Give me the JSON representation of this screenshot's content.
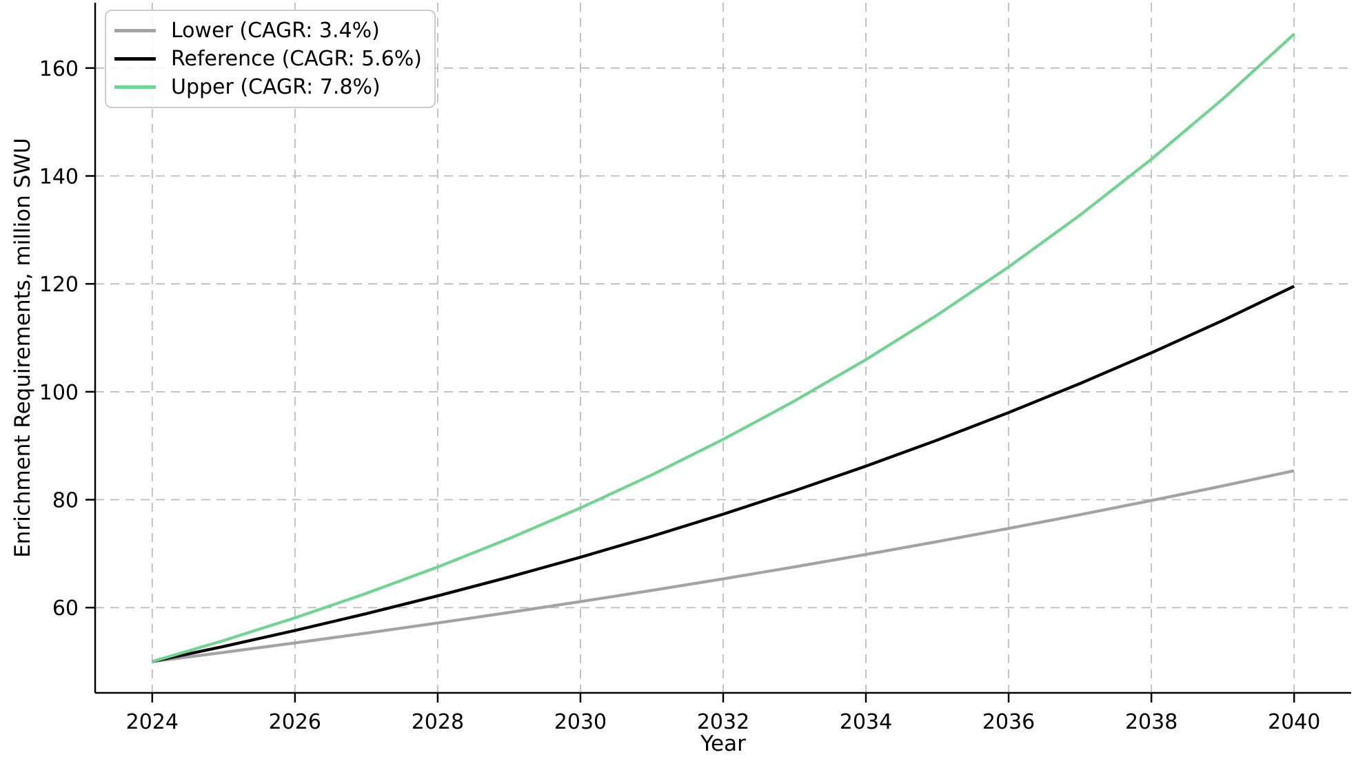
{
  "chart_data": {
    "type": "line",
    "title": "",
    "xlabel": "Year",
    "ylabel": "Enrichment Requirements, million SWU",
    "x": [
      2024,
      2025,
      2026,
      2027,
      2028,
      2029,
      2030,
      2031,
      2032,
      2033,
      2034,
      2035,
      2036,
      2037,
      2038,
      2039,
      2040
    ],
    "series": [
      {
        "name": "Lower (CAGR: 3.4%)",
        "key": "lower",
        "color": "#a3a3a3",
        "values": [
          50.0,
          51.7,
          53.46,
          55.28,
          57.15,
          59.1,
          61.11,
          63.18,
          65.33,
          67.55,
          69.85,
          72.23,
          74.68,
          77.22,
          79.85,
          82.56,
          85.37
        ]
      },
      {
        "name": "Reference (CAGR: 5.6%)",
        "key": "reference",
        "color": "#000000",
        "values": [
          50.0,
          52.8,
          55.76,
          58.88,
          62.18,
          65.66,
          69.34,
          73.22,
          77.32,
          81.65,
          86.22,
          91.05,
          96.15,
          101.53,
          107.22,
          113.22,
          119.56
        ]
      },
      {
        "name": "Upper (CAGR: 7.8%)",
        "key": "upper",
        "color": "#74d393",
        "values": [
          50.0,
          53.9,
          58.1,
          62.64,
          67.52,
          72.79,
          78.47,
          84.59,
          91.18,
          98.3,
          105.96,
          114.23,
          123.14,
          132.74,
          143.1,
          154.26,
          166.29
        ]
      }
    ],
    "xlim": [
      2023.2,
      2040.8
    ],
    "ylim": [
      44.2,
      172.1
    ],
    "xticks": [
      2024,
      2026,
      2028,
      2030,
      2032,
      2034,
      2036,
      2038,
      2040
    ],
    "yticks": [
      60,
      80,
      100,
      120,
      140,
      160
    ],
    "grid": "dashed-both-axes",
    "legend_position": "upper-left"
  },
  "style": {
    "grid_color": "#bdbdbd",
    "axis_color": "#000000",
    "tick_label_color": "#000000",
    "legend_border_color": "#cccccc"
  }
}
